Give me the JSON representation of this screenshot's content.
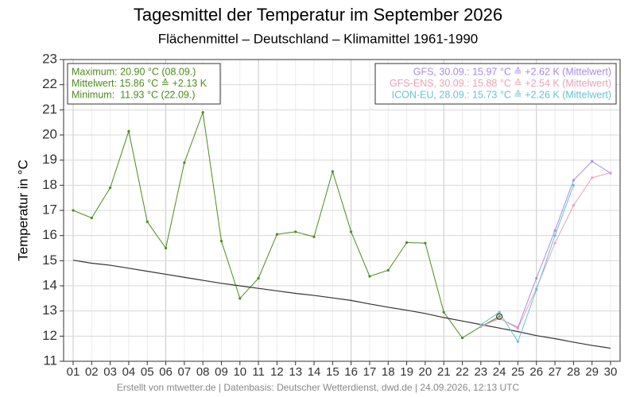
{
  "chart_data": {
    "type": "line",
    "title": "Tagesmittel der Temperatur im September 2026",
    "subtitle": "Flächenmittel – Deutschland – Klimamittel 1961-1990",
    "y_label": "Temperatur in °C",
    "footer": "Erstellt von mtwetter.de | Datenbasis: Deutscher Wetterdienst, dwd.de | 24.09.2026, 12:13 UTC",
    "stats_box": [
      "Maximum: 20.90 °C (08.09.)",
      "Mittelwert: 15.86 °C ≙ +2.13 K",
      "Minimum:  11.93 °C (22.09.)"
    ],
    "categories": [
      "01",
      "02",
      "03",
      "04",
      "05",
      "06",
      "07",
      "08",
      "09",
      "10",
      "11",
      "12",
      "13",
      "14",
      "15",
      "16",
      "17",
      "18",
      "19",
      "20",
      "21",
      "22",
      "23",
      "24",
      "25",
      "26",
      "27",
      "28",
      "29",
      "30"
    ],
    "series": [
      {
        "color": "#4c8c1c",
        "values": [
          17.0,
          16.7,
          17.9,
          20.15,
          16.55,
          15.5,
          18.9,
          20.9,
          15.78,
          13.5,
          14.3,
          16.05,
          16.15,
          15.95,
          18.55,
          16.15,
          14.38,
          14.62,
          15.72,
          15.7,
          12.95,
          11.93,
          12.38,
          12.78,
          null,
          null,
          null,
          null,
          null,
          null
        ]
      },
      {
        "color": "#333333",
        "values": [
          15.02,
          14.9,
          14.82,
          14.7,
          14.58,
          14.46,
          14.34,
          14.22,
          14.1,
          14.0,
          13.9,
          13.8,
          13.7,
          13.62,
          13.52,
          13.42,
          13.28,
          13.15,
          13.03,
          12.9,
          12.74,
          12.6,
          12.46,
          12.32,
          12.18,
          12.02,
          11.9,
          11.76,
          11.63,
          11.52
        ]
      },
      {
        "name": "GFS, 30.09.: 15.97 °C ≙ +2.62 K (Mittelwert)",
        "color": "#a78bf0",
        "values": [
          null,
          null,
          null,
          null,
          null,
          null,
          null,
          null,
          null,
          null,
          null,
          null,
          null,
          null,
          null,
          null,
          null,
          null,
          null,
          null,
          null,
          null,
          12.38,
          12.7,
          12.35,
          14.3,
          16.2,
          18.2,
          18.95,
          18.48
        ]
      },
      {
        "name": "GFS-ENS, 30.09.: 15.88 °C ≙ +2.54 K (Mittelwert)",
        "color": "#f0a0b4",
        "values": [
          null,
          null,
          null,
          null,
          null,
          null,
          null,
          null,
          null,
          null,
          null,
          null,
          null,
          null,
          null,
          null,
          null,
          null,
          null,
          null,
          null,
          null,
          12.38,
          12.72,
          12.3,
          13.9,
          15.7,
          17.2,
          18.3,
          18.5
        ]
      },
      {
        "name": "ICON-EU, 28.09.: 15.73 °C ≙ +2.26 K (Mittelwert)",
        "color": "#64c4d0",
        "values": [
          null,
          null,
          null,
          null,
          null,
          null,
          null,
          null,
          null,
          null,
          null,
          null,
          null,
          null,
          null,
          null,
          null,
          null,
          null,
          null,
          null,
          null,
          12.45,
          12.95,
          11.78,
          13.85,
          16.0,
          18.0,
          null,
          null
        ]
      }
    ],
    "ylim": [
      11,
      23
    ],
    "yticks": [
      11,
      12,
      13,
      14,
      15,
      16,
      17,
      18,
      19,
      20,
      21,
      22,
      23
    ],
    "grid": true
  }
}
